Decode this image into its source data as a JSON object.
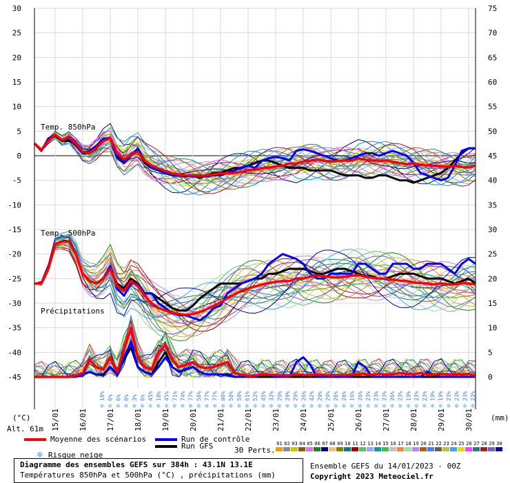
{
  "chart_data": {
    "type": "line",
    "title": "Diagramme des ensembles GEFS sur 384h : 43.1N 13.1E",
    "subtitle": "Températures 850hPa et 500hPa (°C) , précipitations (mm)",
    "ylabel_left": "(°C)",
    "ylabel_right": "(mm)",
    "ylim_left": [
      -45,
      30
    ],
    "ylim_right": [
      0,
      75
    ],
    "left_ticks": [
      "30",
      "25",
      "20",
      "15",
      "10",
      "5",
      "0",
      "-5",
      "-10",
      "-15",
      "-20",
      "-25",
      "-30",
      "-35",
      "-40",
      "-45"
    ],
    "right_ticks": [
      "75",
      "70",
      "65",
      "60",
      "55",
      "50",
      "45",
      "40",
      "35",
      "30",
      "25",
      "20",
      "15",
      "10",
      "5",
      "0"
    ],
    "dates": [
      "15/01",
      "16/01",
      "17/01",
      "18/01",
      "19/01",
      "20/01",
      "21/01",
      "22/01",
      "23/01",
      "24/01",
      "25/01",
      "26/01",
      "27/01",
      "28/01",
      "29/01",
      "30/01"
    ],
    "panel_labels": {
      "t850": "Temp. 850hPa",
      "t500": "Temp. 500hPa",
      "precip": "Précipitations"
    },
    "snow_risk_pct": [
      "10%",
      "6%",
      "6%",
      "6%",
      "3%",
      "6%",
      "45%",
      "10%",
      "45%",
      "71%",
      "74%",
      "77%",
      "58%",
      "77%",
      "77%",
      "90%",
      "58%",
      "58%",
      "61%",
      "52%",
      "45%",
      "32%",
      "29%",
      "29%",
      "29%",
      "26%",
      "42%",
      "29%",
      "29%",
      "26%",
      "26%",
      "16%",
      "26%",
      "23%",
      "23%",
      "23%",
      "26%",
      "23%",
      "19%",
      "23%",
      "23%",
      "19%",
      "19%",
      "23%",
      "23%",
      "23%",
      "23%"
    ],
    "x": [
      0,
      6,
      12,
      18,
      24,
      30,
      36,
      42,
      48,
      54,
      60,
      66,
      72,
      78,
      84,
      90,
      96,
      102,
      108,
      114,
      120,
      126,
      132,
      138,
      144,
      150,
      156,
      162,
      168,
      174,
      180,
      186,
      192,
      198,
      204,
      210,
      216,
      222,
      228,
      234,
      240,
      246,
      252,
      258,
      264,
      270,
      276,
      282,
      288,
      294,
      300,
      306,
      312,
      318,
      324,
      330,
      336,
      342,
      348,
      354,
      360,
      366,
      372,
      378,
      384
    ],
    "series": [
      {
        "name": "Moyenne des scénarios",
        "color": "#ff0000",
        "t850": [
          2.5,
          1.2,
          3.0,
          4.3,
          3.2,
          3.8,
          2.5,
          0.8,
          0.6,
          1.6,
          3.0,
          3.5,
          0.5,
          -0.8,
          0.2,
          0.8,
          -1.0,
          -2.0,
          -2.6,
          -3.1,
          -3.6,
          -3.8,
          -4.0,
          -4.0,
          -4.1,
          -4.0,
          -3.8,
          -3.6,
          -3.6,
          -3.5,
          -3.3,
          -3.0,
          -2.8,
          -2.6,
          -2.4,
          -2.2,
          -2.0,
          -1.6,
          -1.6,
          -1.2,
          -1.0,
          -0.8,
          -1.0,
          -1.2,
          -1.1,
          -1.0,
          -1.0,
          -0.6,
          -0.8,
          -1.0,
          -1.0,
          -1.0,
          -1.2,
          -1.5,
          -1.7,
          -1.6,
          -1.8,
          -2.0,
          -2.0,
          -2.2,
          -2.2,
          -2.1,
          -2.3,
          -2.4,
          -2.0
        ],
        "t500": [
          -26,
          -26,
          -23,
          -18,
          -17.5,
          -17.5,
          -20,
          -24,
          -25.5,
          -26,
          -25,
          -23,
          -26.5,
          -27.5,
          -25.5,
          -26.5,
          -28.5,
          -30,
          -31,
          -31.5,
          -32,
          -32.2,
          -32.4,
          -32.2,
          -31.8,
          -31.2,
          -30.6,
          -29.8,
          -29.0,
          -28.2,
          -27.5,
          -27.0,
          -26.6,
          -26.2,
          -25.9,
          -25.7,
          -25.5,
          -25.5,
          -25.0,
          -25.0,
          -24.6,
          -24.4,
          -24.5,
          -24.7,
          -24.8,
          -24.6,
          -24.4,
          -24.3,
          -24.6,
          -24.8,
          -25.0,
          -25.0,
          -25.2,
          -25.4,
          -25.5,
          -25.8,
          -25.9,
          -26.0,
          -26.2,
          -26.0,
          -26.2,
          -26.2,
          -25.9,
          -26.0,
          -26.2
        ],
        "precip": [
          0,
          0,
          0,
          0,
          0,
          0,
          0.3,
          0.8,
          3.5,
          2.0,
          1.5,
          4.0,
          1.0,
          5.5,
          10.0,
          4.0,
          2.0,
          1.5,
          5.0,
          6.5,
          3.5,
          2.0,
          2.5,
          3.0,
          2.0,
          1.8,
          2.0,
          2.5,
          3.0,
          0.8,
          0.5,
          0.2,
          0.3,
          0.5,
          0.4,
          0.4,
          0.3,
          0.3,
          0.5,
          0.4,
          0.3,
          0.5,
          0.4,
          0.3,
          0.4,
          0.3,
          0.5,
          0.5,
          0.6,
          0.4,
          0.6,
          0.5,
          0.5,
          0.8,
          0.6,
          0.5,
          0.8,
          0.5,
          0.5,
          0.6,
          0.5,
          0.5,
          0.5,
          0.6,
          0.2
        ]
      },
      {
        "name": "Run de contrôle",
        "color": "#0000ff",
        "t850": [
          2.5,
          1.0,
          3.5,
          4.3,
          3.0,
          3.5,
          2.0,
          0.5,
          1.0,
          2.0,
          3.5,
          3.5,
          -0.5,
          -1.5,
          0.0,
          1.5,
          -1.0,
          -2.5,
          -3.0,
          -3.5,
          -4.0,
          -4.0,
          -4.0,
          -4.2,
          -4.0,
          -4.2,
          -4.0,
          -4.0,
          -3.5,
          -3.0,
          -2.5,
          -2.0,
          -2.5,
          -1.0,
          -0.5,
          -0.2,
          -0.5,
          -1.0,
          1.0,
          1.3,
          1.0,
          0.5,
          0.0,
          -0.5,
          -1.0,
          -1.0,
          -0.5,
          0.0,
          0.5,
          0.5,
          0.0,
          0.5,
          1.0,
          0.5,
          0.0,
          -1.5,
          -3.5,
          -4.0,
          -4.5,
          -5.0,
          -4.5,
          -2.0,
          1.0,
          1.5,
          1.5
        ],
        "t500": [
          -26,
          -26,
          -23,
          -18,
          -17.5,
          -17.5,
          -20,
          -24,
          -25.5,
          -26,
          -25,
          -22.5,
          -27,
          -28.5,
          -26,
          -26,
          -28,
          -28,
          -30,
          -31,
          -32,
          -32.5,
          -32.5,
          -33,
          -33.5,
          -32.5,
          -31,
          -30.5,
          -28,
          -27,
          -26,
          -25.5,
          -25,
          -24,
          -22,
          -21,
          -20,
          -20.5,
          -21,
          -22,
          -24,
          -25,
          -25,
          -24,
          -24,
          -24,
          -24,
          -22,
          -22,
          -23,
          -24,
          -24,
          -22,
          -22,
          -22,
          -23,
          -23,
          -22,
          -22,
          -22,
          -23,
          -24,
          -22,
          -21,
          -22
        ],
        "precip": [
          0,
          0,
          0,
          0,
          0,
          0,
          0,
          0.5,
          1.0,
          0.5,
          0.3,
          2.0,
          0.5,
          4.0,
          7.0,
          2.0,
          1.0,
          0.5,
          2.0,
          4.0,
          2.0,
          1.0,
          1.5,
          2.0,
          1.0,
          0.5,
          0.5,
          0.5,
          0.3,
          0,
          0,
          0,
          0,
          0.5,
          0.5,
          0,
          0,
          0,
          3.0,
          4.0,
          2.5,
          0,
          0,
          0,
          0,
          0,
          0,
          3.0,
          2.0,
          0,
          0,
          0,
          0,
          0,
          0,
          0,
          0,
          1.0,
          0.5,
          0,
          0,
          0,
          0,
          0,
          0
        ]
      },
      {
        "name": "Run GFS",
        "color": "#000000",
        "t850": [
          2.5,
          1.0,
          3.2,
          4.0,
          3.0,
          3.0,
          2.5,
          0.5,
          0.5,
          1.5,
          3.0,
          3.5,
          0.0,
          -1.0,
          0.3,
          1.0,
          -1.5,
          -2.5,
          -3.0,
          -3.5,
          -4.0,
          -4.0,
          -4.2,
          -4.0,
          -4.5,
          -4.0,
          -3.5,
          -3.5,
          -3.0,
          -2.5,
          -2.5,
          -2.0,
          -1.5,
          -1.0,
          -1.0,
          -1.5,
          -2.0,
          -2.5,
          -2.5,
          -2.5,
          -3.0,
          -3.0,
          -3.0,
          -3.0,
          -3.5,
          -4.0,
          -4.0,
          -4.0,
          -4.5,
          -4.5,
          -4.0,
          -4.0,
          -4.5,
          -5.0,
          -5.0,
          -5.5,
          -5.0,
          -4.5,
          -4.0,
          -3.5,
          -2.5,
          -1.0,
          0.5,
          1.5,
          1.5
        ],
        "t500": [
          -26,
          -26,
          -23,
          -18,
          -17.5,
          -17.5,
          -20,
          -24,
          -25.5,
          -26,
          -25,
          -23,
          -26,
          -27,
          -25,
          -26,
          -28,
          -28,
          -29,
          -30,
          -31,
          -31.5,
          -31.5,
          -30.5,
          -29,
          -28,
          -27,
          -26,
          -26,
          -26,
          -26,
          -25.5,
          -25,
          -25,
          -24,
          -24,
          -23.5,
          -23,
          -23,
          -23,
          -23.5,
          -24,
          -24,
          -23.5,
          -23,
          -23,
          -23.5,
          -24,
          -24.5,
          -24.5,
          -25,
          -25,
          -24.5,
          -24,
          -24,
          -24,
          -24.5,
          -25,
          -25,
          -25,
          -25.5,
          -26,
          -25.5,
          -25,
          -26
        ],
        "precip": [
          0,
          0,
          0,
          0,
          0,
          0,
          0,
          0.5,
          1.0,
          0.5,
          0.5,
          2.0,
          0.5,
          3.5,
          6.0,
          2.0,
          1.0,
          0.5,
          3.0,
          5.0,
          2.0,
          1.0,
          1.5,
          2.0,
          1.0,
          0.5,
          0.5,
          0.5,
          0.5,
          0,
          0,
          0,
          0,
          0,
          0,
          0,
          0,
          0,
          0,
          0,
          0,
          0,
          0,
          0,
          0,
          0,
          0,
          0,
          0,
          0,
          0,
          0,
          0,
          0,
          0,
          0,
          0,
          0,
          0,
          0,
          0,
          0,
          0,
          0,
          0
        ]
      }
    ],
    "legend": [
      "Moyenne des scénarios",
      "Run de contrôle",
      "Run GFS"
    ],
    "grid": true
  },
  "labels": {
    "alt": "Alt. 61m",
    "risk": "Risque neige",
    "perts": "30 Perts.",
    "ensemble": "Ensemble GEFS du 14/01/2023 - 00Z",
    "copyright": "Copyright 2023 Meteociel.fr",
    "footer_line1": "Diagramme des ensembles GEFS sur 384h : 43.1N 13.1E",
    "footer_line2": "Températures 850hPa et 500hPa (°C) , précipitations (mm)"
  },
  "members": {
    "numbers": [
      "01",
      "02",
      "03",
      "04",
      "05",
      "06",
      "07",
      "08",
      "09",
      "10",
      "11",
      "12",
      "13",
      "14",
      "15",
      "16",
      "17",
      "18",
      "19",
      "20",
      "21",
      "22",
      "23",
      "24",
      "25",
      "26",
      "27",
      "28",
      "29",
      "30"
    ],
    "colors": [
      "#e8a000",
      "#8c8c8c",
      "#c8c800",
      "#806000",
      "#e070e0",
      "#208020",
      "#000080",
      "#f0c080",
      "#808000",
      "#008080",
      "#a00000",
      "#60c060",
      "#a0a0ff",
      "#00a0a0",
      "#40c040",
      "#c0c0c0",
      "#ff8040",
      "#a0e0a0",
      "#c080ff",
      "#b06000",
      "#4080ff",
      "#606060",
      "#c0c040",
      "#40a0ff",
      "#e0e000",
      "#ff40ff",
      "#208080",
      "#a02020",
      "#7060c0",
      "#0000c0"
    ]
  }
}
